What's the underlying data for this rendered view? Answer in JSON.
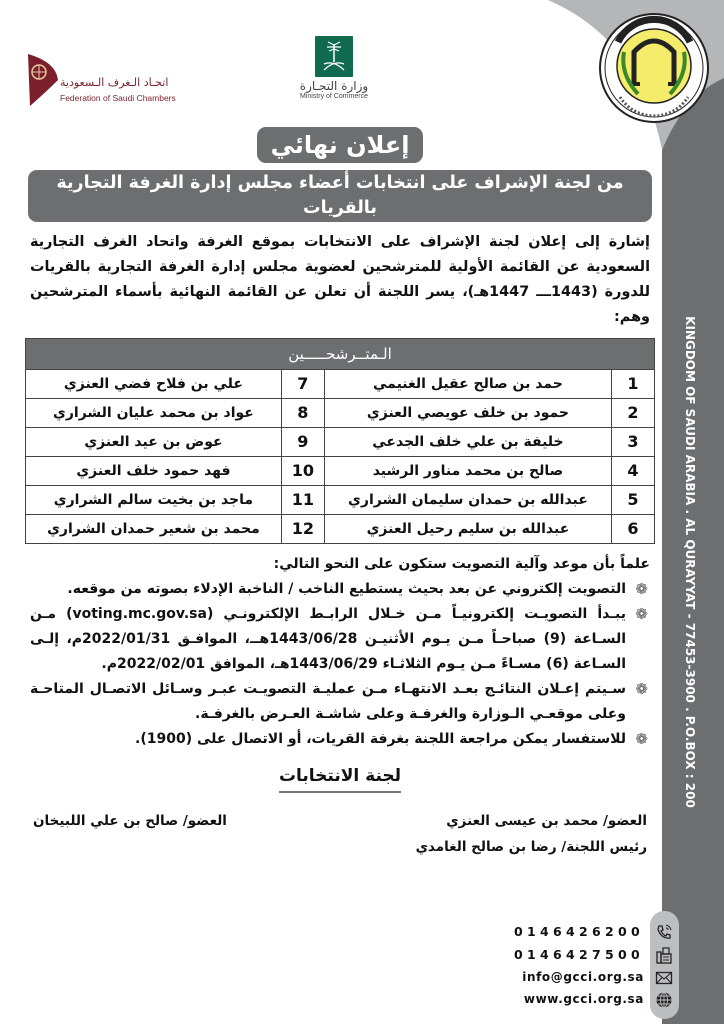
{
  "logos": {
    "federation": {
      "name_ar": "اتحـاد الـغرف الـسعودية",
      "name_en": "Federation of Saudi Chambers",
      "color": "#7a1f2b"
    },
    "ministry": {
      "name_ar": "وزارة التجـارة",
      "name_en": "Ministry of Commerce",
      "color": "#0f6a4f"
    },
    "chamber_seal": {
      "text_ar": "الغرفة التجارية الصناعية بالقريات",
      "text_en": "AL QURAYYAT CHAMBER OF COMMERCE & INDUSTRY",
      "year": "١٤٠٨هـ"
    }
  },
  "header": {
    "title": "إعلان نهائي",
    "subtitle": "من لجنة الإشراف على انتخابات أعضاء مجلس إدارة الغرفة التجارية بالقريات"
  },
  "intro": "إشارة إلى إعلان لجنة الإشراف على الانتخابات بموقع الغرفة واتحاد الغرف التجارية السعودية عن القائمة الأولية للمترشحين لعضوية مجلس إدارة الغرفة التجارية بالقريات للدورة (1443ـــ 1447هـ)، يسر اللجنة أن تعلن عن القائمة النهائية بأسماء المترشحين وهم:",
  "candidates": {
    "header": "الـمتــرشحـــــين",
    "rows": [
      {
        "n1": "1",
        "name1": "حمد بن صالح عقيل الغنيمي",
        "n2": "7",
        "name2": "علي بن فلاح فضي العنزي"
      },
      {
        "n1": "2",
        "name1": "حمود بن خلف عويصي العنزي",
        "n2": "8",
        "name2": "عواد بن محمد عليان الشراري"
      },
      {
        "n1": "3",
        "name1": "خليفة بن علي خلف الجدعي",
        "n2": "9",
        "name2": "عوض بن عيد العنزي"
      },
      {
        "n1": "4",
        "name1": "صالح بن محمد مناور الرشيد",
        "n2": "10",
        "name2": "فهد حمود خلف العنزي"
      },
      {
        "n1": "5",
        "name1": "عبدالله بن حمدان سليمان الشراري",
        "n2": "11",
        "name2": "ماجد بن بخيت سالم الشراري"
      },
      {
        "n1": "6",
        "name1": "عبدالله بن سليم رحيل العنزي",
        "n2": "12",
        "name2": "محمد بن شعير حمدان الشراري"
      }
    ]
  },
  "notes": {
    "lead": "علماً بأن موعد وآلية التصويت ستكون على النحو التالي:",
    "items": [
      "التصويت إلكتروني عن بعد بحيث يستطيع الناخب / الناخبة الإدلاء بصوته من موقعه.",
      "يبـدأ التصويـت إلكترونيـاً مـن خـلال الرابـط الإلكترونـي (voting.mc.gov.sa) مـن السـاعة (9) صباحـاً مـن يـوم الأثنيـن 1443/06/28هــ، الموافـق 2022/01/31م، إلـى السـاعة (6) مسـاءً مـن يـوم الثلاثـاء 1443/06/29هـ، الموافق 2022/02/01م.",
      "سـيتم إعـلان النتائـج بعـد الانتهـاء مـن عمليـة التصويـت عبـر وسـائل الاتصـال المتاحـة وعلى موقعـي الـوزارة والغرفـة وعلى شاشـة العـرض بالغرفـة.",
      "للاستفسار يمكن مراجعة اللجنة بغرفة القريات، أو الاتصال على (1900)."
    ]
  },
  "committee": {
    "title": "لجنة الانتخابات",
    "members": [
      "العضو/ محمد بن عيسى العنزي",
      "العضو/ صالح بن علي اللبيخان",
      "رئيس اللجنة/ رضا بن صالح الغامدي"
    ]
  },
  "side_band": {
    "text": "KINGDOM OF SAUDI ARABIA . AL QURAYYAT - 77453-3900 . P.O.BOX : 200"
  },
  "contacts": {
    "phone": "0146426200",
    "fax": "0146427500",
    "email": "info@gcci.org.sa",
    "website": "www.gcci.org.sa",
    "icons": [
      "phone-icon",
      "fax-icon",
      "envelope-icon",
      "globe-icon"
    ]
  },
  "colors": {
    "band_dark": "#6d6e70",
    "band_light": "#b5b6b8",
    "pill": "#6d6e70"
  }
}
